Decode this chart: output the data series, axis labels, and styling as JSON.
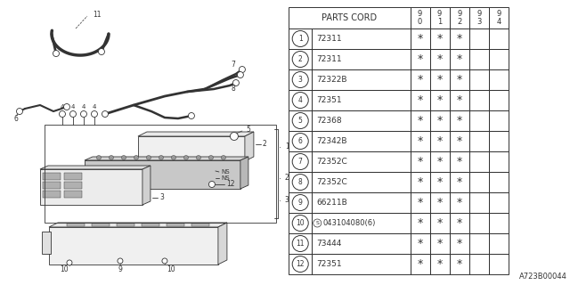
{
  "bg_color": "#ffffff",
  "watermark": "A723B00044",
  "lc": "#333333",
  "table": {
    "header_col": "PARTS CORD",
    "year_cols": [
      "9\n0",
      "9\n1",
      "9\n2",
      "9\n3",
      "9\n4"
    ],
    "rows": [
      {
        "num": "1",
        "part": "72311",
        "marks": [
          true,
          true,
          true,
          false,
          false
        ]
      },
      {
        "num": "2",
        "part": "72311",
        "marks": [
          true,
          true,
          true,
          false,
          false
        ]
      },
      {
        "num": "3",
        "part": "72322B",
        "marks": [
          true,
          true,
          true,
          false,
          false
        ]
      },
      {
        "num": "4",
        "part": "72351",
        "marks": [
          true,
          true,
          true,
          false,
          false
        ]
      },
      {
        "num": "5",
        "part": "72368",
        "marks": [
          true,
          true,
          true,
          false,
          false
        ]
      },
      {
        "num": "6",
        "part": "72342B",
        "marks": [
          true,
          true,
          true,
          false,
          false
        ]
      },
      {
        "num": "7",
        "part": "72352C",
        "marks": [
          true,
          true,
          true,
          false,
          false
        ]
      },
      {
        "num": "8",
        "part": "72352C",
        "marks": [
          true,
          true,
          true,
          false,
          false
        ]
      },
      {
        "num": "9",
        "part": "66211B",
        "marks": [
          true,
          true,
          true,
          false,
          false
        ]
      },
      {
        "num": "10",
        "part": "S043104080(6)",
        "marks": [
          true,
          true,
          true,
          false,
          false
        ]
      },
      {
        "num": "11",
        "part": "73444",
        "marks": [
          true,
          true,
          true,
          false,
          false
        ]
      },
      {
        "num": "12",
        "part": "72351",
        "marks": [
          true,
          true,
          true,
          false,
          false
        ]
      }
    ]
  }
}
